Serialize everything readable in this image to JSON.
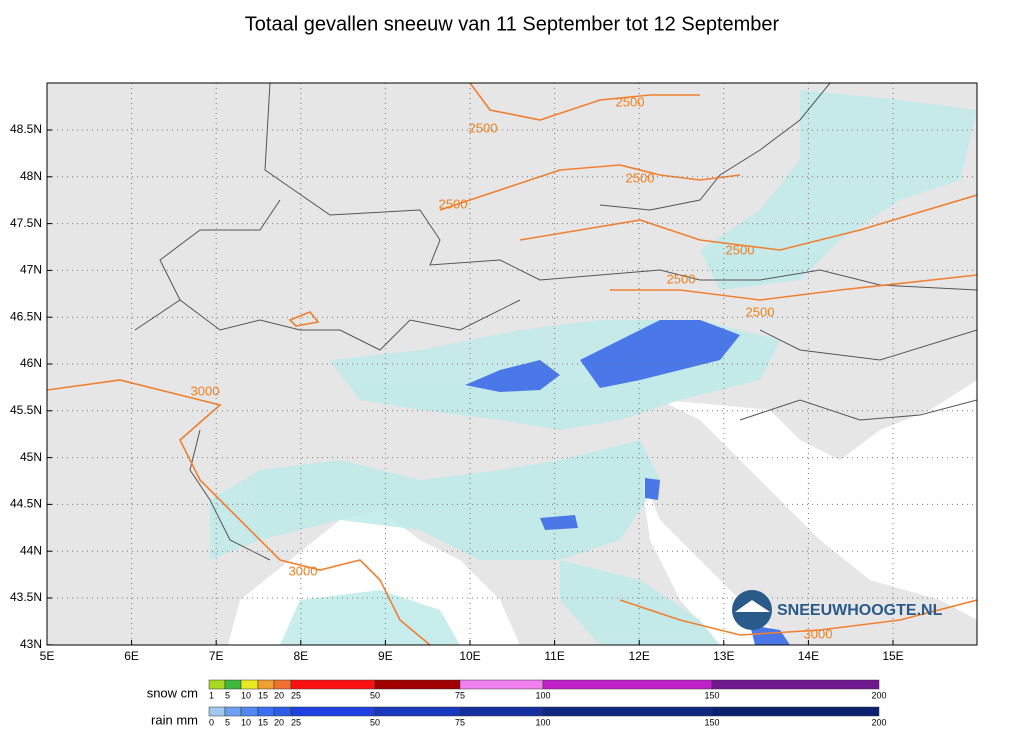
{
  "title": "Totaal gevallen sneeuw van 11 September tot 12 September",
  "map": {
    "lat_labels": [
      "48.5N",
      "48N",
      "47.5N",
      "47N",
      "46.5N",
      "46N",
      "45.5N",
      "45N",
      "44.5N",
      "44N",
      "43.5N",
      "43N"
    ],
    "lon_labels": [
      "5E",
      "6E",
      "7E",
      "8E",
      "9E",
      "10E",
      "11E",
      "12E",
      "13E",
      "14E",
      "15E"
    ],
    "contour_labels": [
      2500,
      2500,
      2500,
      2500,
      2500,
      2500,
      2500,
      3000,
      3000,
      3000
    ],
    "logo": "SNEEUWHOOGTE.NL"
  },
  "legend": {
    "snow": {
      "label": "snow cm",
      "ticks": [
        1,
        5,
        10,
        15,
        20,
        25,
        50,
        75,
        100,
        150,
        200
      ],
      "colors": [
        "#a8d820",
        "#3cb83c",
        "#e8e820",
        "#f0a030",
        "#f07030",
        "#ff1010",
        "#a00000",
        "#f080f0",
        "#c020c8",
        "#701890"
      ]
    },
    "rain": {
      "label": "rain mm",
      "ticks": [
        0,
        5,
        10,
        15,
        20,
        25,
        50,
        75,
        100,
        150,
        200
      ],
      "colors": [
        "#a0c8f0",
        "#6ea0f0",
        "#5088f0",
        "#3c70f0",
        "#2c5ce8",
        "#2040e0",
        "#1838c0",
        "#1430a0",
        "#102880",
        "#0c2070"
      ]
    }
  }
}
